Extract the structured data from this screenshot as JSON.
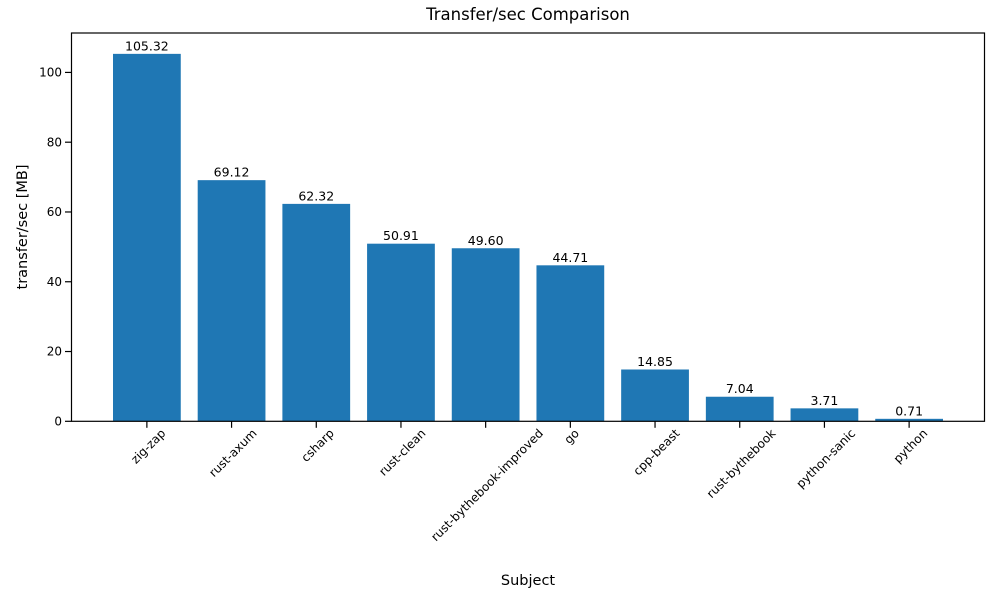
{
  "chart_data": {
    "type": "bar",
    "title": "Transfer/sec Comparison",
    "xlabel": "Subject",
    "ylabel": "transfer/sec [MB]",
    "categories": [
      "zig-zap",
      "rust-axum",
      "csharp",
      "rust-clean",
      "rust-bythebook-improved",
      "go",
      "cpp-beast",
      "rust-bythebook",
      "python-sanic",
      "python"
    ],
    "values": [
      105.32,
      69.12,
      62.32,
      50.91,
      49.6,
      44.71,
      14.85,
      7.04,
      3.71,
      0.71
    ],
    "value_labels": [
      "105.32",
      "69.12",
      "62.32",
      "50.91",
      "49.60",
      "44.71",
      "14.85",
      "7.04",
      "3.71",
      "0.71"
    ],
    "yticks": [
      0,
      20,
      40,
      60,
      80,
      100
    ],
    "ytick_labels": [
      "0",
      "20",
      "40",
      "60",
      "80",
      "100"
    ],
    "ylim": [
      0,
      111.3
    ],
    "xtick_rotation_deg": 45,
    "grid": false,
    "legend": "none",
    "colors": {
      "bar": "#1f77b4",
      "text": "#000000",
      "spine": "#000000",
      "background": "#ffffff"
    }
  }
}
